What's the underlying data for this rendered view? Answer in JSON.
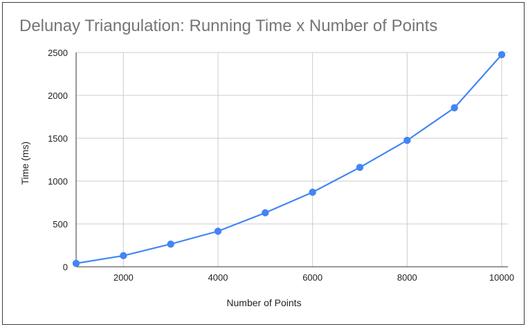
{
  "chart_data": {
    "type": "line",
    "title": "Delunay Triangulation: Running Time x Number of Points",
    "xlabel": "Number of Points",
    "ylabel": "Time (ms)",
    "x": [
      1000,
      2000,
      3000,
      4000,
      5000,
      6000,
      7000,
      8000,
      9000,
      10000
    ],
    "series": [
      {
        "values": [
          40,
          130,
          265,
          415,
          630,
          870,
          1160,
          1475,
          1855,
          2475
        ],
        "color": "#4285f4"
      }
    ],
    "xlim": [
      1000,
      10000
    ],
    "ylim": [
      0,
      2500
    ],
    "xticks": [
      2000,
      4000,
      6000,
      8000,
      10000
    ],
    "yticks": [
      0,
      500,
      1000,
      1500,
      2000,
      2500
    ],
    "grid": true,
    "legend": "none"
  }
}
